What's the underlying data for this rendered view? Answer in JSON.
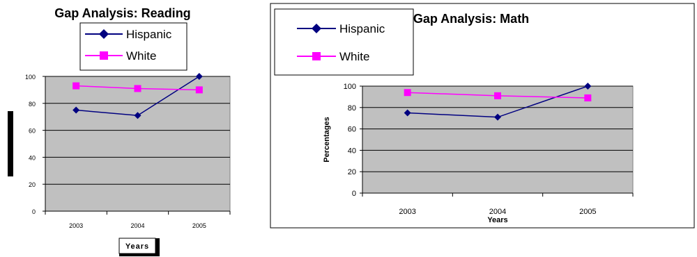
{
  "colors": {
    "plot_background": "#c0c0c0",
    "hispanic": "#000080",
    "white": "#ff00ff",
    "frame": "#000000",
    "page": "#ffffff"
  },
  "chart_data": [
    {
      "type": "line",
      "title": "Gap Analysis: Reading",
      "xlabel": "Years",
      "ylabel": "",
      "categories": [
        "2003",
        "2004",
        "2005"
      ],
      "ylim": [
        0,
        100
      ],
      "yticks": [
        "0",
        "20",
        "40",
        "60",
        "80",
        "100"
      ],
      "grid": "horizontal",
      "legend_position": "top",
      "series": [
        {
          "name": "Hispanic",
          "values": [
            75,
            71,
            100
          ],
          "marker": "diamond",
          "color": "#000080"
        },
        {
          "name": "White",
          "values": [
            93,
            91,
            90
          ],
          "marker": "square",
          "color": "#ff00ff"
        }
      ]
    },
    {
      "type": "line",
      "title": "Gap Analysis: Math",
      "xlabel": "Years",
      "ylabel": "Percentages",
      "categories": [
        "2003",
        "2004",
        "2005"
      ],
      "ylim": [
        0,
        100
      ],
      "yticks": [
        "0",
        "20",
        "40",
        "60",
        "80",
        "100"
      ],
      "grid": "horizontal",
      "legend_position": "top-left",
      "series": [
        {
          "name": "Hispanic",
          "values": [
            75,
            71,
            100
          ],
          "marker": "diamond",
          "color": "#000080"
        },
        {
          "name": "White",
          "values": [
            94,
            91,
            89
          ],
          "marker": "square",
          "color": "#ff00ff"
        }
      ]
    }
  ]
}
